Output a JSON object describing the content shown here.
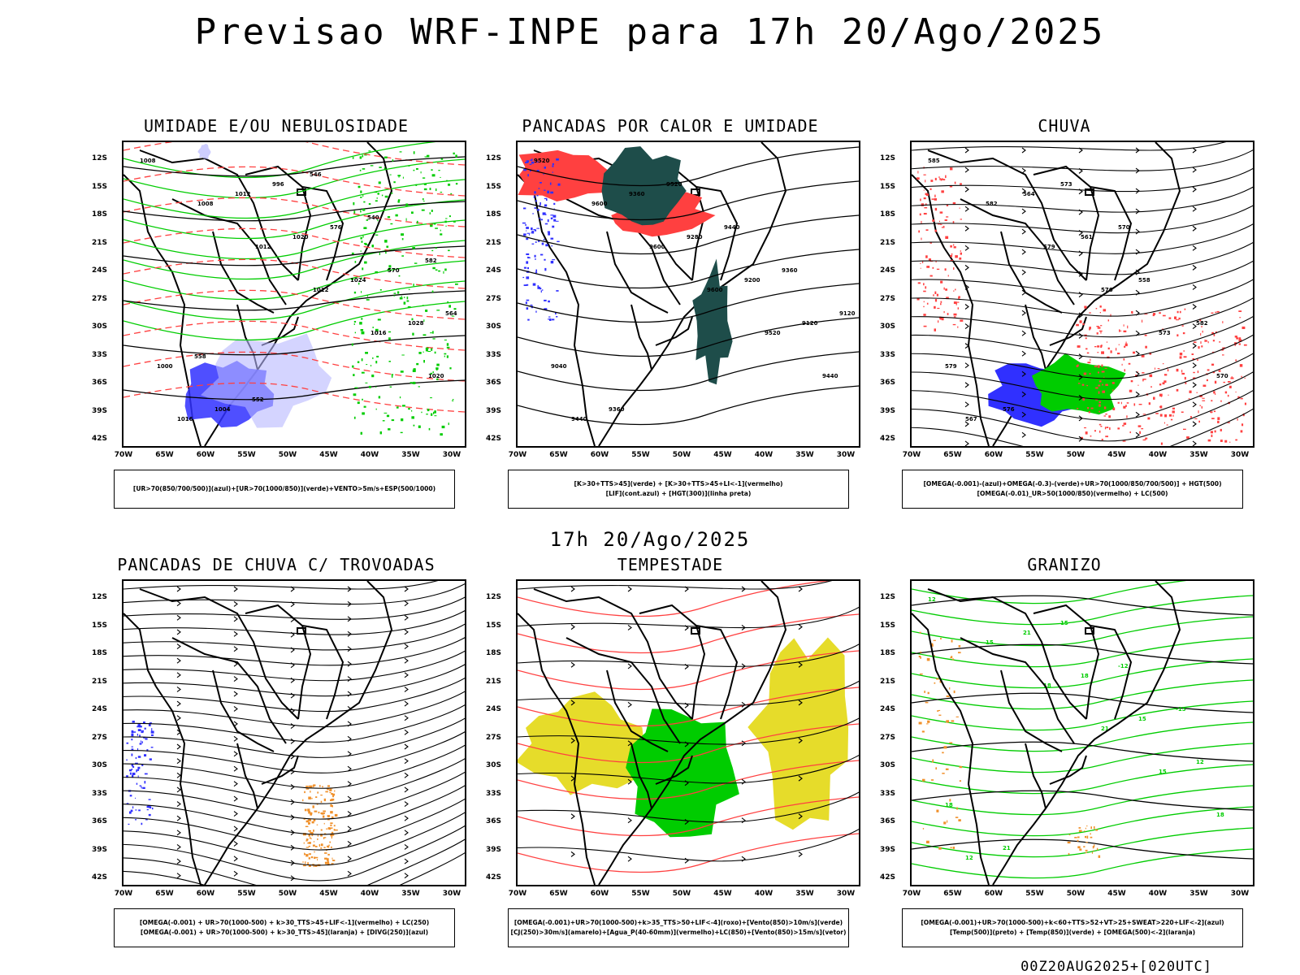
{
  "title": "Previsao WRF-INPE  para 17h 20/Ago/2025",
  "mid_title": "17h 20/Ago/2025",
  "footer": "00Z20AUG2025+[020UTC]",
  "lat_labels": [
    "12S",
    "15S",
    "18S",
    "21S",
    "24S",
    "27S",
    "30S",
    "33S",
    "36S",
    "39S",
    "42S"
  ],
  "lon_labels": [
    "70W",
    "65W",
    "60W",
    "55W",
    "50W",
    "45W",
    "40W",
    "35W",
    "30W"
  ],
  "panels": [
    {
      "id": "umidade",
      "title": "UMIDADE E/OU NEBULOSIDADE",
      "legend": [
        "[UR>70(850/700/500)](azul)+[UR>70(1000/850)](verde)+VENTO>5m/s+ESP(500/1000)"
      ],
      "contour_labels": [
        "1008",
        "1008",
        "1012",
        "1012",
        "1016",
        "1020",
        "1016",
        "1012",
        "1020",
        "1024",
        "1028",
        "1000",
        "1004",
        "996",
        "576",
        "570",
        "564",
        "558",
        "552",
        "546",
        "540",
        "582"
      ]
    },
    {
      "id": "pancadas-calor",
      "title": "PANCADAS POR CALOR E UMIDADE",
      "legend": [
        "[K>30+TTS>45](verde) + [K>30+TTS>45+LI<-1](vermelho)",
        "[LIF](cont.azul) + [HGT(300)](linha preta)"
      ],
      "contour_labels": [
        "9520",
        "9600",
        "9600",
        "9600",
        "9520",
        "9440",
        "9440",
        "9360",
        "9280",
        "9200",
        "9120",
        "9040",
        "9360",
        "9520",
        "9440",
        "9360",
        "9120"
      ]
    },
    {
      "id": "chuva",
      "title": "CHUVA",
      "legend": [
        "[OMEGA(-0.001)-(azul)+OMEGA(-0.3)-(verde)+UR>70(1000/850/700/500)] + HGT(500)",
        "[OMEGA(-0.01)_UR>50(1000/850)(vermelho) + LC(500)"
      ],
      "contour_labels": [
        "585",
        "582",
        "579",
        "576",
        "573",
        "570",
        "567",
        "564",
        "561",
        "558",
        "582",
        "579",
        "576",
        "573",
        "570"
      ]
    },
    {
      "id": "pancadas-trovoadas",
      "title": "PANCADAS DE CHUVA C/ TROVOADAS",
      "legend": [
        "[OMEGA(-0.001) + UR>70(1000-500) + k>30_TTS>45+LIF<-1](vermelho) + LC(250)",
        "[OMEGA(-0.001) + UR>70(1000-500) + k>30_TTS>45](laranja) + [DIVG(250)](azul)"
      ],
      "contour_labels": []
    },
    {
      "id": "tempestade",
      "title": "TEMPESTADE",
      "legend": [
        "[OMEGA(-0.001)+UR>70(1000-500)+k>35_TTS>50+LIF<-4](roxo)+[Vento(850)>10m/s](verde)",
        "[CJ(250)>30m/s](amarelo)+[Agua_P(40-60mm)](vermelho)+LC(850)+[Vento(850)>15m/s](vetor)"
      ],
      "contour_labels": []
    },
    {
      "id": "granizo",
      "title": "GRANIZO",
      "legend": [
        "[OMEGA(-0.001)+UR>70(1000-500)+k<60+TTS>52+VT>25+SWEAT>220+LIF<-2](azul)",
        "[Temp(500)](preto) + [Temp(850)](verde) + [OMEGA(500)<-2](laranja)"
      ],
      "contour_labels": [
        "12",
        "15",
        "18",
        "21",
        "15",
        "18",
        "12",
        "21",
        "18",
        "15",
        "12",
        "18",
        "21",
        "15",
        "-12",
        "-15"
      ]
    }
  ],
  "colors": {
    "red": "#ff4040",
    "green": "#00cc00",
    "blue": "#3030ff",
    "lightblue": "#b8b8ff",
    "darkteal": "#1e4d4a",
    "orange": "#f0902a",
    "yellow": "#e6dc2a",
    "palegreen": "#33bb33"
  }
}
